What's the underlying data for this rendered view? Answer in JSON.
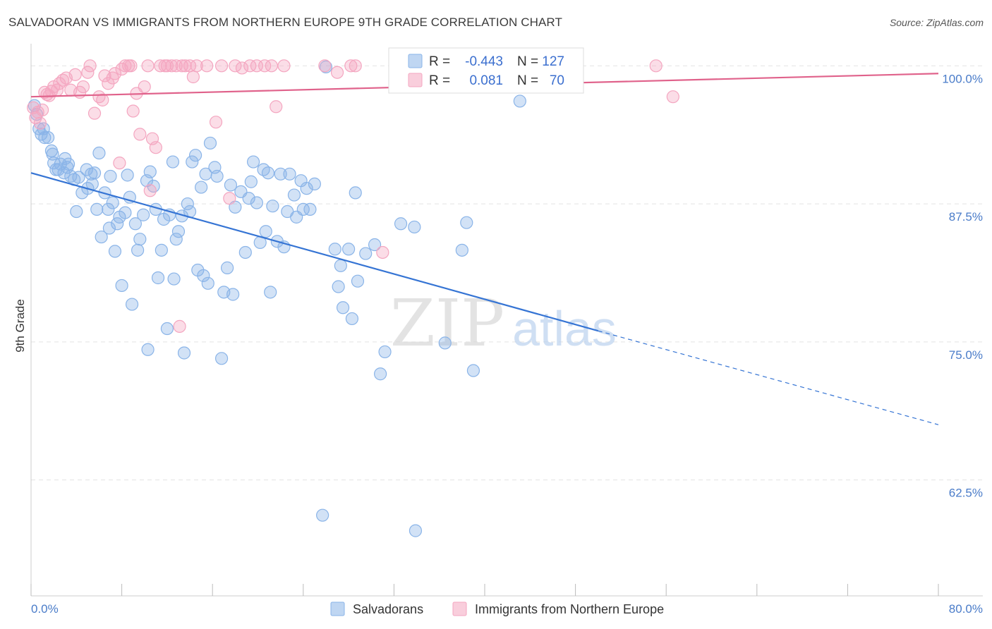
{
  "title": "SALVADORAN VS IMMIGRANTS FROM NORTHERN EUROPE 9TH GRADE CORRELATION CHART",
  "source": "Source: ZipAtlas.com",
  "watermark": {
    "zip": "ZIP",
    "atlas": "atlas"
  },
  "legend": {
    "rows": [
      {
        "r_label": "R =",
        "r_value": "-0.443",
        "n_label": "N =",
        "n_value": "127",
        "color": "#8ab4e8"
      },
      {
        "r_label": "R =",
        "r_value": "0.081",
        "n_label": "N =",
        "n_value": "70",
        "color": "#f4a6c0"
      }
    ]
  },
  "chart_data": {
    "type": "scatter",
    "ylabel": "9th Grade",
    "xlabel": "",
    "xlim": [
      0,
      80
    ],
    "ylim": [
      52,
      102
    ],
    "x_tick_labels": [
      "0.0%",
      "80.0%"
    ],
    "y_ticks": [
      62.5,
      75.0,
      87.5,
      100.0
    ],
    "y_tick_labels": [
      "62.5%",
      "75.0%",
      "87.5%",
      "100.0%"
    ],
    "grid": true,
    "legend_position": "top-center",
    "series": [
      {
        "name": "Salvadorans",
        "color": "#8ab4e8",
        "line_color": "#3574d4",
        "trend": {
          "x0": 0,
          "y0": 90.3,
          "x1": 50,
          "y1": 76.0,
          "x_dash_end": 80,
          "y_dash_end": 67.5
        },
        "points": [
          [
            0.3,
            96.4
          ],
          [
            0.5,
            95.6
          ],
          [
            0.7,
            94.3
          ],
          [
            0.9,
            93.8
          ],
          [
            1.2,
            93.5
          ],
          [
            1.5,
            93.5
          ],
          [
            1.8,
            92.3
          ],
          [
            1.9,
            92.0
          ],
          [
            2.2,
            90.6
          ],
          [
            2.4,
            90.6
          ],
          [
            2.6,
            91.1
          ],
          [
            2.9,
            90.3
          ],
          [
            3.2,
            90.8
          ],
          [
            3.5,
            90.0
          ],
          [
            3.8,
            89.7
          ],
          [
            4.0,
            86.8
          ],
          [
            4.5,
            88.5
          ],
          [
            4.9,
            90.6
          ],
          [
            5.0,
            88.9
          ],
          [
            5.3,
            90.2
          ],
          [
            5.6,
            90.3
          ],
          [
            5.8,
            87.0
          ],
          [
            6.0,
            92.1
          ],
          [
            6.2,
            84.5
          ],
          [
            6.5,
            88.5
          ],
          [
            6.8,
            87.0
          ],
          [
            7.0,
            90.0
          ],
          [
            7.2,
            87.6
          ],
          [
            7.4,
            83.2
          ],
          [
            7.6,
            85.7
          ],
          [
            7.8,
            86.3
          ],
          [
            8.0,
            80.1
          ],
          [
            8.3,
            86.7
          ],
          [
            8.5,
            90.1
          ],
          [
            8.7,
            88.1
          ],
          [
            8.9,
            78.4
          ],
          [
            9.2,
            85.7
          ],
          [
            9.4,
            83.3
          ],
          [
            9.6,
            84.3
          ],
          [
            9.9,
            86.5
          ],
          [
            10.2,
            89.6
          ],
          [
            10.3,
            74.3
          ],
          [
            10.5,
            90.4
          ],
          [
            10.8,
            89.1
          ],
          [
            11.0,
            87.0
          ],
          [
            11.2,
            80.8
          ],
          [
            11.5,
            83.3
          ],
          [
            11.7,
            86.1
          ],
          [
            12.0,
            76.2
          ],
          [
            12.2,
            86.5
          ],
          [
            12.5,
            91.3
          ],
          [
            12.6,
            80.7
          ],
          [
            12.8,
            84.3
          ],
          [
            13.0,
            85.0
          ],
          [
            13.3,
            86.4
          ],
          [
            13.5,
            74.0
          ],
          [
            13.8,
            87.5
          ],
          [
            14.0,
            86.8
          ],
          [
            14.2,
            91.3
          ],
          [
            14.5,
            91.9
          ],
          [
            14.7,
            81.5
          ],
          [
            15.0,
            89.0
          ],
          [
            15.2,
            81.0
          ],
          [
            15.4,
            90.2
          ],
          [
            15.6,
            80.3
          ],
          [
            15.8,
            93.0
          ],
          [
            16.2,
            90.8
          ],
          [
            16.4,
            90.0
          ],
          [
            16.8,
            73.5
          ],
          [
            17.0,
            79.5
          ],
          [
            17.3,
            81.7
          ],
          [
            17.6,
            89.2
          ],
          [
            17.8,
            79.3
          ],
          [
            18.0,
            87.2
          ],
          [
            18.5,
            88.6
          ],
          [
            18.9,
            83.1
          ],
          [
            19.2,
            88.0
          ],
          [
            19.4,
            89.5
          ],
          [
            19.6,
            91.3
          ],
          [
            19.9,
            87.6
          ],
          [
            20.2,
            84.0
          ],
          [
            20.5,
            90.6
          ],
          [
            20.7,
            85.0
          ],
          [
            20.9,
            90.3
          ],
          [
            21.1,
            79.5
          ],
          [
            21.3,
            87.3
          ],
          [
            21.7,
            84.1
          ],
          [
            22.0,
            90.2
          ],
          [
            22.3,
            83.6
          ],
          [
            22.6,
            86.8
          ],
          [
            22.8,
            90.2
          ],
          [
            23.2,
            88.3
          ],
          [
            23.4,
            86.3
          ],
          [
            23.8,
            89.6
          ],
          [
            24.0,
            87.0
          ],
          [
            24.3,
            88.9
          ],
          [
            24.6,
            87.0
          ],
          [
            25.0,
            89.3
          ],
          [
            26.0,
            99.9
          ],
          [
            25.7,
            59.3
          ],
          [
            26.8,
            83.4
          ],
          [
            27.1,
            80.0
          ],
          [
            27.3,
            81.9
          ],
          [
            27.5,
            78.1
          ],
          [
            28.0,
            83.4
          ],
          [
            28.3,
            77.1
          ],
          [
            28.6,
            88.5
          ],
          [
            28.8,
            80.5
          ],
          [
            29.5,
            83.0
          ],
          [
            30.3,
            83.8
          ],
          [
            30.8,
            72.1
          ],
          [
            31.2,
            74.1
          ],
          [
            32.6,
            85.7
          ],
          [
            33.8,
            85.4
          ],
          [
            33.9,
            57.9
          ],
          [
            36.5,
            74.9
          ],
          [
            38.0,
            83.3
          ],
          [
            38.4,
            85.8
          ],
          [
            39.0,
            72.4
          ],
          [
            43.1,
            96.8
          ],
          [
            1.1,
            94.3
          ],
          [
            2.0,
            91.2
          ],
          [
            3.0,
            91.6
          ],
          [
            3.3,
            91.1
          ],
          [
            4.2,
            89.9
          ],
          [
            5.4,
            89.3
          ],
          [
            6.9,
            85.3
          ]
        ]
      },
      {
        "name": "Immigrants from Northern Europe",
        "color": "#f4a6c0",
        "line_color": "#e0628b",
        "trend": {
          "x0": 0,
          "y0": 97.2,
          "x1": 80,
          "y1": 99.3
        },
        "points": [
          [
            0.2,
            96.2
          ],
          [
            0.4,
            95.3
          ],
          [
            0.6,
            95.8
          ],
          [
            0.8,
            94.8
          ],
          [
            1.0,
            96.0
          ],
          [
            1.2,
            97.6
          ],
          [
            1.4,
            97.4
          ],
          [
            1.6,
            97.3
          ],
          [
            1.8,
            97.7
          ],
          [
            2.0,
            98.1
          ],
          [
            2.3,
            97.8
          ],
          [
            2.5,
            98.4
          ],
          [
            2.8,
            98.7
          ],
          [
            3.1,
            98.9
          ],
          [
            3.5,
            97.8
          ],
          [
            3.9,
            99.2
          ],
          [
            4.3,
            97.6
          ],
          [
            4.6,
            98.1
          ],
          [
            5.0,
            99.4
          ],
          [
            5.2,
            100.0
          ],
          [
            5.6,
            95.7
          ],
          [
            6.0,
            97.2
          ],
          [
            6.3,
            96.9
          ],
          [
            6.5,
            99.1
          ],
          [
            6.8,
            98.4
          ],
          [
            7.2,
            98.9
          ],
          [
            7.4,
            99.3
          ],
          [
            7.8,
            91.2
          ],
          [
            8.0,
            99.7
          ],
          [
            8.3,
            100.0
          ],
          [
            8.6,
            100.0
          ],
          [
            8.8,
            100.0
          ],
          [
            9.0,
            95.9
          ],
          [
            9.3,
            97.5
          ],
          [
            9.6,
            93.8
          ],
          [
            10.0,
            98.1
          ],
          [
            10.3,
            100.0
          ],
          [
            10.5,
            88.7
          ],
          [
            10.7,
            93.4
          ],
          [
            11.0,
            92.6
          ],
          [
            11.4,
            100.0
          ],
          [
            11.8,
            100.0
          ],
          [
            12.0,
            100.0
          ],
          [
            12.4,
            100.0
          ],
          [
            12.8,
            100.0
          ],
          [
            13.1,
            76.4
          ],
          [
            13.3,
            100.0
          ],
          [
            13.6,
            100.0
          ],
          [
            14.0,
            100.0
          ],
          [
            14.3,
            99.0
          ],
          [
            14.6,
            100.0
          ],
          [
            15.5,
            100.0
          ],
          [
            16.3,
            94.9
          ],
          [
            16.8,
            100.0
          ],
          [
            17.5,
            88.0
          ],
          [
            18.0,
            100.0
          ],
          [
            18.6,
            99.8
          ],
          [
            19.3,
            100.0
          ],
          [
            19.9,
            100.0
          ],
          [
            20.6,
            100.0
          ],
          [
            21.2,
            100.0
          ],
          [
            21.6,
            96.3
          ],
          [
            22.3,
            100.0
          ],
          [
            25.9,
            100.0
          ],
          [
            27.0,
            99.4
          ],
          [
            28.2,
            100.0
          ],
          [
            28.6,
            100.0
          ],
          [
            31.0,
            83.1
          ],
          [
            55.1,
            100.0
          ],
          [
            56.6,
            97.2
          ]
        ]
      }
    ]
  }
}
